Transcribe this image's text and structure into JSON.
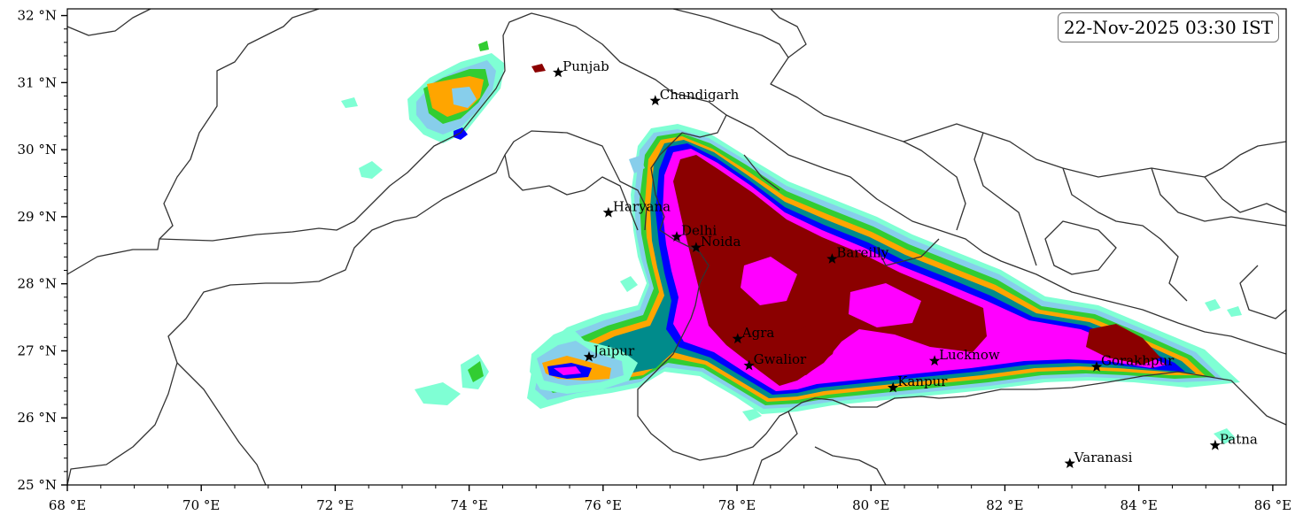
{
  "timestamp": "22-Nov-2025 03:30 IST",
  "axes": {
    "lon_ticks": [
      68,
      70,
      72,
      74,
      76,
      78,
      80,
      82,
      84,
      86
    ],
    "lon_labels": [
      "68 °E",
      "70 °E",
      "72 °E",
      "74 °E",
      "76 °E",
      "78 °E",
      "80 °E",
      "82 °E",
      "84 °E",
      "86 °E"
    ],
    "lat_ticks": [
      25,
      26,
      27,
      28,
      29,
      30,
      31,
      32
    ],
    "lat_labels": [
      "25 °N",
      "26 °N",
      "27 °N",
      "28 °N",
      "29 °N",
      "30 °N",
      "31 °N",
      "32 °N"
    ],
    "lon_range": [
      68,
      86.2
    ],
    "lat_range": [
      25,
      32.1
    ]
  },
  "colors": {
    "c1": "#7fffd4",
    "c2": "#87ceeb",
    "c3": "#32cd32",
    "c4": "#ffa500",
    "c5": "#008b8b",
    "c6": "#0000ff",
    "c7": "#ff00ff",
    "c8": "#8b0000",
    "border": "#333333"
  },
  "cities": [
    {
      "name": "Punjab",
      "lon": 75.33,
      "lat": 31.15
    },
    {
      "name": "Chandigarh",
      "lon": 76.78,
      "lat": 30.73
    },
    {
      "name": "Haryana",
      "lon": 76.08,
      "lat": 29.06
    },
    {
      "name": "Delhi",
      "lon": 77.1,
      "lat": 28.7
    },
    {
      "name": "Noida",
      "lon": 77.39,
      "lat": 28.54
    },
    {
      "name": "Bareilly",
      "lon": 79.42,
      "lat": 28.37
    },
    {
      "name": "Jaipur",
      "lon": 75.79,
      "lat": 26.91
    },
    {
      "name": "Agra",
      "lon": 78.01,
      "lat": 27.18
    },
    {
      "name": "Gwalior",
      "lon": 78.18,
      "lat": 26.78
    },
    {
      "name": "Lucknow",
      "lon": 80.95,
      "lat": 26.85
    },
    {
      "name": "Kanpur",
      "lon": 80.33,
      "lat": 26.45
    },
    {
      "name": "Gorakhpur",
      "lon": 83.37,
      "lat": 26.76
    },
    {
      "name": "Varanasi",
      "lon": 82.97,
      "lat": 25.32
    },
    {
      "name": "Patna",
      "lon": 85.14,
      "lat": 25.59
    }
  ]
}
